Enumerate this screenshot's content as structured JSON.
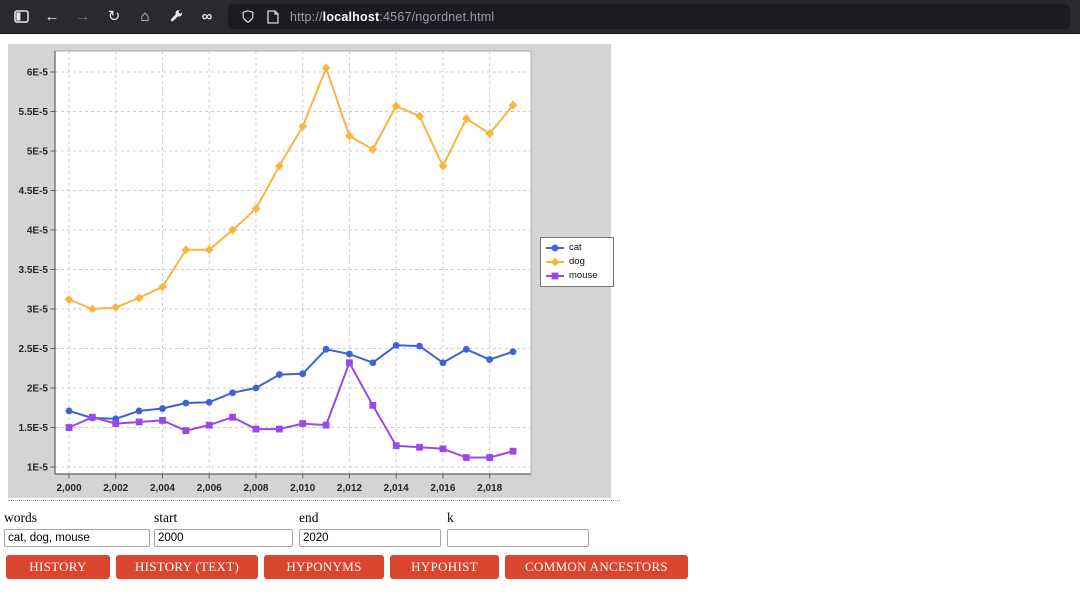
{
  "browser": {
    "url": {
      "scheme": "http://",
      "host": "localhost",
      "path": ":4567/ngordnet.html"
    },
    "icons": [
      "sidebar-toggle",
      "back",
      "forward",
      "reload",
      "home",
      "wrench",
      "infinity",
      "shield",
      "page"
    ]
  },
  "chart_data": {
    "type": "line",
    "x": [
      2000,
      2001,
      2002,
      2003,
      2004,
      2005,
      2006,
      2007,
      2008,
      2009,
      2010,
      2011,
      2012,
      2013,
      2014,
      2015,
      2016,
      2017,
      2018,
      2019
    ],
    "unit": "1e-5",
    "series": [
      {
        "name": "cat",
        "color": "#3F62D9",
        "marker": "circle",
        "values_e5": [
          1.71,
          1.62,
          1.61,
          1.71,
          1.74,
          1.81,
          1.82,
          1.94,
          2.0,
          2.17,
          2.18,
          2.49,
          2.43,
          2.32,
          2.54,
          2.53,
          2.32,
          2.49,
          2.36,
          2.46
        ]
      },
      {
        "name": "dog",
        "color": "#FBB440",
        "marker": "diamond",
        "values_e5": [
          3.12,
          3.0,
          3.02,
          3.14,
          3.28,
          3.75,
          3.75,
          4.0,
          4.27,
          4.81,
          5.31,
          6.05,
          5.19,
          5.02,
          5.57,
          5.44,
          4.81,
          5.41,
          5.22,
          5.58
        ]
      },
      {
        "name": "mouse",
        "color": "#9A49E8",
        "marker": "square",
        "values_e5": [
          1.5,
          1.63,
          1.55,
          1.57,
          1.59,
          1.46,
          1.53,
          1.63,
          1.48,
          1.48,
          1.55,
          1.53,
          2.32,
          1.78,
          1.27,
          1.25,
          1.23,
          1.12,
          1.12,
          1.2
        ]
      }
    ],
    "yticks_e5": [
      1,
      1.5,
      2,
      2.5,
      3,
      3.5,
      4,
      4.5,
      5,
      5.5,
      6
    ],
    "ytick_labels": [
      "1E-5",
      "1.5E-5",
      "2E-5",
      "2.5E-5",
      "3E-5",
      "3.5E-5",
      "4E-5",
      "4.5E-5",
      "5E-5",
      "5.5E-5",
      "6E-5"
    ],
    "xticks": [
      2000,
      2002,
      2004,
      2006,
      2008,
      2010,
      2012,
      2014,
      2016,
      2018
    ],
    "xtick_labels": [
      "2,000",
      "2,002",
      "2,004",
      "2,006",
      "2,008",
      "2,010",
      "2,012",
      "2,014",
      "2,016",
      "2,018"
    ],
    "legend": {
      "position": "right",
      "entries": [
        "cat",
        "dog",
        "mouse"
      ]
    },
    "grid": true,
    "plot_bg": "#ffffff",
    "outer_bg": "#d4d4d4"
  },
  "form": {
    "fields": [
      {
        "label": "words",
        "value": "cat, dog, mouse"
      },
      {
        "label": "start",
        "value": "2000"
      },
      {
        "label": "end",
        "value": "2020"
      },
      {
        "label": "k",
        "value": ""
      }
    ],
    "buttons": [
      "HISTORY",
      "HISTORY (TEXT)",
      "HYPONYMS",
      "HYPOHIST",
      "COMMON ANCESTORS"
    ]
  }
}
